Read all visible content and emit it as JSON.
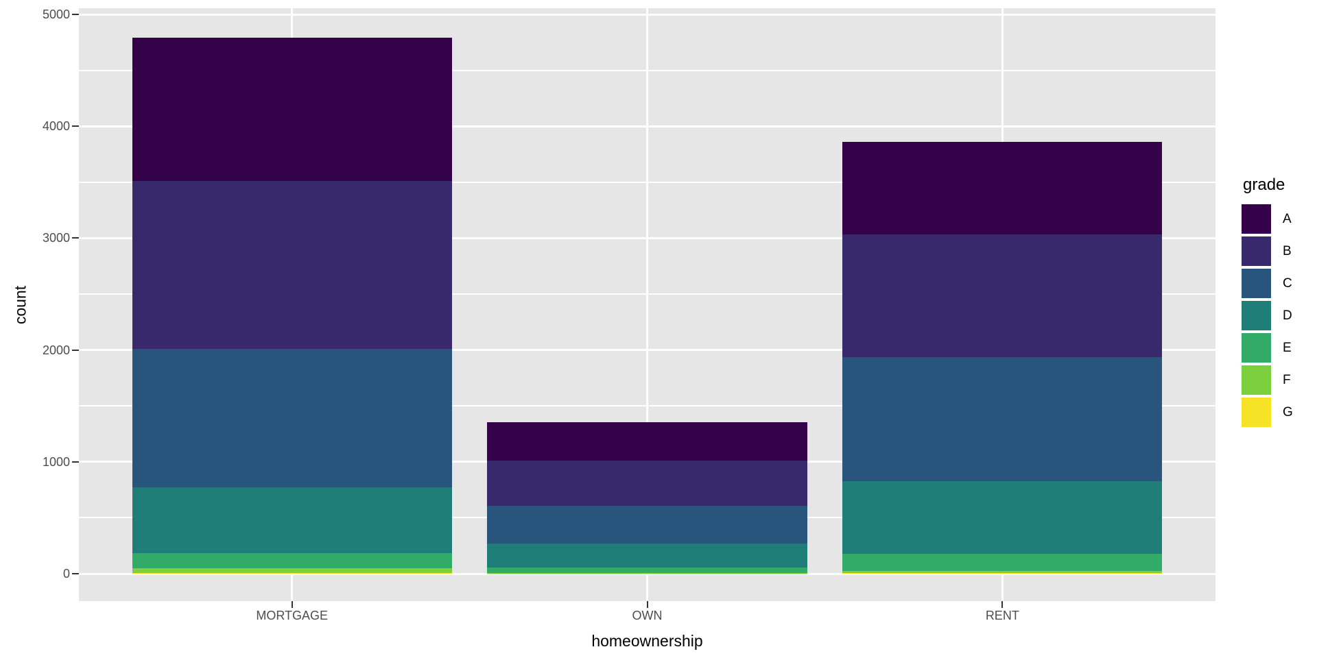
{
  "chart_data": {
    "type": "bar",
    "subtype": "stacked",
    "title": "",
    "xlabel": "homeownership",
    "ylabel": "count",
    "categories": [
      "MORTGAGE",
      "OWN",
      "RENT"
    ],
    "series": [
      {
        "name": "A",
        "color": "#330249",
        "values": [
          1279,
          340,
          826
        ]
      },
      {
        "name": "B",
        "color": "#37296B",
        "values": [
          1500,
          408,
          1095
        ]
      },
      {
        "name": "C",
        "color": "#28557B",
        "values": [
          1236,
          337,
          1111
        ]
      },
      {
        "name": "D",
        "color": "#1F7E78",
        "values": [
          588,
          215,
          650
        ]
      },
      {
        "name": "E",
        "color": "#32AB68",
        "values": [
          139,
          45,
          153
        ]
      },
      {
        "name": "F",
        "color": "#7DD03D",
        "values": [
          39,
          5,
          17
        ]
      },
      {
        "name": "G",
        "color": "#F6E326",
        "values": [
          8,
          3,
          6
        ]
      }
    ],
    "stack_totals": [
      4789,
      1353,
      3858
    ],
    "stack_order_top_to_bottom": [
      "A",
      "B",
      "C",
      "D",
      "E",
      "F",
      "G"
    ],
    "y_ticks": [
      0,
      1000,
      2000,
      3000,
      4000,
      5000
    ],
    "y_minor_ticks": [
      500,
      1500,
      2500,
      3500,
      4500
    ],
    "ylim": [
      0,
      5000
    ],
    "axis_expansion": 0.05,
    "bar_width_fraction": 0.9,
    "grid": true,
    "legend": {
      "title": "grade",
      "position": "right",
      "labels": [
        "A",
        "B",
        "C",
        "D",
        "E",
        "F",
        "G"
      ]
    },
    "style": {
      "panel_background": "#E6E6E6",
      "gridline_color": "#FFFFFF",
      "tick_label_color": "#4D4D4D",
      "tick_mark_color": "#333333",
      "axis_title_color": "#000000"
    }
  }
}
